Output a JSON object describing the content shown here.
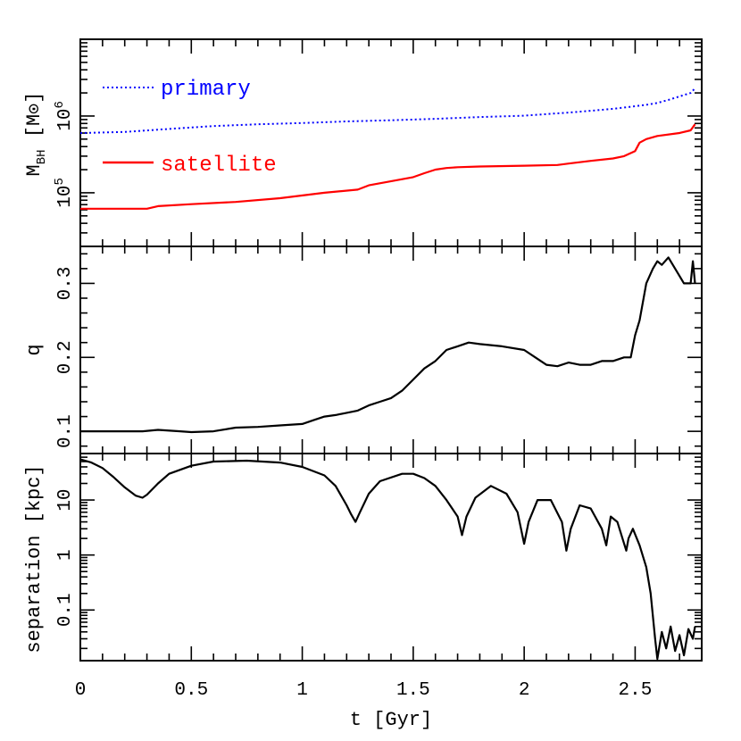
{
  "chart_data": [
    {
      "type": "line",
      "panel": "top",
      "ylabel": "M_BH [M⊙]",
      "ylabel_main": "M",
      "ylabel_sub": "BH",
      "ylabel_unit_open": " [M",
      "ylabel_unit_close": "]",
      "yscale": "log",
      "ylim": [
        20000,
        10000000
      ],
      "xlim": [
        0,
        2.8
      ],
      "yticks": [
        {
          "value": 100000,
          "label": "10",
          "exp": "5"
        },
        {
          "value": 1000000,
          "label": "10",
          "exp": "6"
        }
      ],
      "series": [
        {
          "name": "primary",
          "color": "#0000ff",
          "style": "dotted",
          "x": [
            0,
            0.2,
            0.4,
            0.6,
            0.8,
            1.0,
            1.2,
            1.4,
            1.6,
            1.8,
            2.0,
            2.1,
            2.2,
            2.3,
            2.4,
            2.5,
            2.55,
            2.6,
            2.65,
            2.7,
            2.75,
            2.77
          ],
          "y": [
            600000,
            620000,
            680000,
            740000,
            780000,
            810000,
            850000,
            880000,
            920000,
            970000,
            1010000,
            1060000,
            1110000,
            1170000,
            1240000,
            1340000,
            1400000,
            1480000,
            1620000,
            1800000,
            2000000,
            2300000
          ]
        },
        {
          "name": "satellite",
          "color": "#ff0000",
          "style": "solid",
          "x": [
            0,
            0.15,
            0.3,
            0.35,
            0.5,
            0.7,
            0.9,
            1.1,
            1.25,
            1.3,
            1.5,
            1.55,
            1.6,
            1.65,
            1.7,
            1.8,
            2.0,
            2.15,
            2.2,
            2.3,
            2.4,
            2.45,
            2.5,
            2.52,
            2.55,
            2.6,
            2.7,
            2.75,
            2.77
          ],
          "y": [
            62000,
            62000,
            62000,
            67000,
            71000,
            76000,
            85000,
            100000,
            110000,
            125000,
            160000,
            180000,
            200000,
            210000,
            215000,
            220000,
            225000,
            230000,
            240000,
            260000,
            280000,
            300000,
            350000,
            450000,
            500000,
            550000,
            600000,
            650000,
            780000
          ]
        }
      ]
    },
    {
      "type": "line",
      "panel": "middle",
      "ylabel": "q",
      "yscale": "linear",
      "ylim": [
        0.07,
        0.35
      ],
      "xlim": [
        0,
        2.8
      ],
      "yticks": [
        {
          "value": 0.1,
          "label": "0.1"
        },
        {
          "value": 0.2,
          "label": "0.2"
        },
        {
          "value": 0.3,
          "label": "0.3"
        }
      ],
      "series": [
        {
          "color": "#000000",
          "x": [
            0,
            0.1,
            0.2,
            0.28,
            0.35,
            0.45,
            0.5,
            0.6,
            0.7,
            0.8,
            0.9,
            1.0,
            1.05,
            1.1,
            1.15,
            1.2,
            1.25,
            1.3,
            1.35,
            1.4,
            1.45,
            1.5,
            1.55,
            1.6,
            1.65,
            1.7,
            1.75,
            1.8,
            1.9,
            2.0,
            2.05,
            2.1,
            2.15,
            2.2,
            2.25,
            2.3,
            2.35,
            2.4,
            2.45,
            2.48,
            2.5,
            2.52,
            2.55,
            2.58,
            2.6,
            2.62,
            2.65,
            2.7,
            2.72,
            2.75,
            2.76,
            2.77
          ],
          "y": [
            0.1,
            0.1,
            0.1,
            0.1,
            0.102,
            0.1,
            0.099,
            0.1,
            0.105,
            0.106,
            0.108,
            0.11,
            0.115,
            0.12,
            0.122,
            0.125,
            0.128,
            0.135,
            0.14,
            0.145,
            0.155,
            0.17,
            0.185,
            0.195,
            0.21,
            0.215,
            0.22,
            0.218,
            0.215,
            0.21,
            0.2,
            0.19,
            0.188,
            0.193,
            0.19,
            0.19,
            0.195,
            0.195,
            0.2,
            0.2,
            0.23,
            0.25,
            0.3,
            0.32,
            0.33,
            0.325,
            0.335,
            0.31,
            0.3,
            0.3,
            0.33,
            0.3
          ]
        }
      ]
    },
    {
      "type": "line",
      "panel": "bottom",
      "ylabel": "separation [kpc]",
      "xlabel": "t [Gyr]",
      "yscale": "log",
      "ylim": [
        0.012,
        70
      ],
      "xlim": [
        0,
        2.8
      ],
      "xticks": [
        {
          "value": 0,
          "label": "0"
        },
        {
          "value": 0.5,
          "label": "0.5"
        },
        {
          "value": 1,
          "label": "1"
        },
        {
          "value": 1.5,
          "label": "1.5"
        },
        {
          "value": 2,
          "label": "2"
        },
        {
          "value": 2.5,
          "label": "2.5"
        }
      ],
      "yticks": [
        {
          "value": 0.1,
          "label": "0.1"
        },
        {
          "value": 1,
          "label": "1"
        },
        {
          "value": 10,
          "label": "10"
        }
      ],
      "series": [
        {
          "color": "#000000",
          "x": [
            0,
            0.05,
            0.1,
            0.15,
            0.2,
            0.25,
            0.28,
            0.3,
            0.35,
            0.4,
            0.5,
            0.6,
            0.75,
            0.9,
            1.0,
            1.1,
            1.15,
            1.2,
            1.22,
            1.24,
            1.26,
            1.3,
            1.35,
            1.45,
            1.5,
            1.55,
            1.6,
            1.65,
            1.7,
            1.72,
            1.74,
            1.78,
            1.85,
            1.92,
            1.97,
            2.0,
            2.02,
            2.06,
            2.12,
            2.17,
            2.19,
            2.21,
            2.25,
            2.3,
            2.35,
            2.37,
            2.39,
            2.42,
            2.46,
            2.47,
            2.49,
            2.52,
            2.55,
            2.57,
            2.59,
            2.6,
            2.62,
            2.64,
            2.66,
            2.68,
            2.7,
            2.72,
            2.74,
            2.76,
            2.77
          ],
          "y": [
            55,
            48,
            38,
            26,
            17,
            12,
            11,
            12.5,
            20,
            30,
            42,
            50,
            52,
            48,
            40,
            28,
            18,
            8,
            5.5,
            4,
            6,
            13,
            22,
            30,
            30,
            25,
            18,
            10,
            5,
            2.3,
            5,
            11,
            18,
            13,
            6,
            1.6,
            4,
            10,
            10,
            4,
            1.2,
            3,
            8,
            7,
            3,
            1.5,
            5,
            4,
            1.2,
            2,
            3,
            1.5,
            0.6,
            0.2,
            0.03,
            0.013,
            0.04,
            0.02,
            0.05,
            0.018,
            0.035,
            0.015,
            0.045,
            0.03,
            0.05
          ]
        }
      ]
    }
  ],
  "labels": {
    "xlabel": "t [Gyr]",
    "panel_top_ylabel": "M_BH [M⊙]",
    "panel_mid_ylabel": "q",
    "panel_bot_ylabel": "separation [kpc]",
    "legend_primary": "primary",
    "legend_satellite": "satellite"
  }
}
